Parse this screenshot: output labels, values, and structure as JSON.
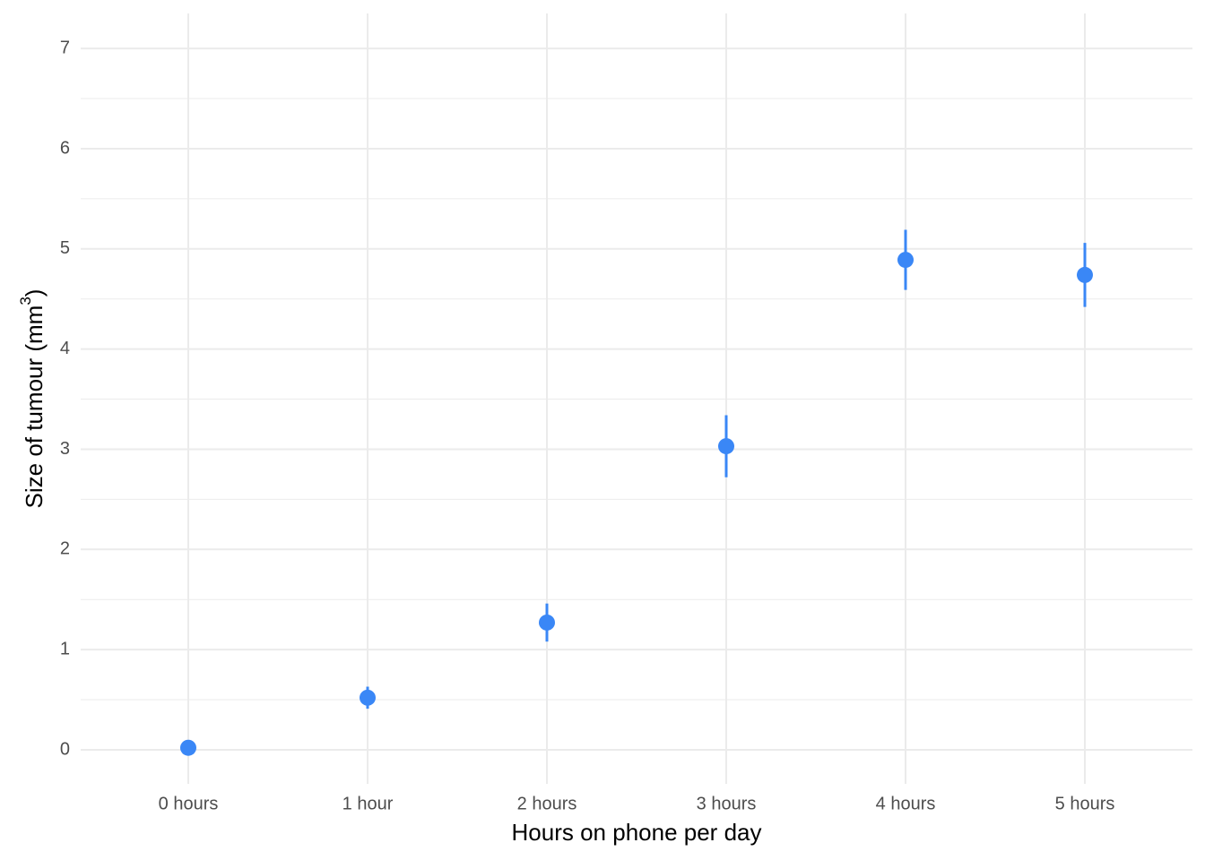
{
  "chart_data": {
    "type": "pointrange",
    "xlabel": "Hours on phone per day",
    "ylabel": {
      "text": "Size of tumour (mm",
      "superscript": "3",
      "suffix": ")"
    },
    "categories": [
      "0 hours",
      "1 hour",
      "2 hours",
      "3 hours",
      "4 hours",
      "5 hours"
    ],
    "values": [
      0.02,
      0.52,
      1.27,
      3.03,
      4.89,
      4.74
    ],
    "errors": [
      0.01,
      0.11,
      0.19,
      0.31,
      0.3,
      0.32
    ],
    "color": "#3a87f6",
    "ylim": [
      -0.34,
      7.35
    ],
    "yticks": [
      0,
      1,
      2,
      3,
      4,
      5,
      6,
      7
    ],
    "grid": true,
    "minor_grid": true
  }
}
